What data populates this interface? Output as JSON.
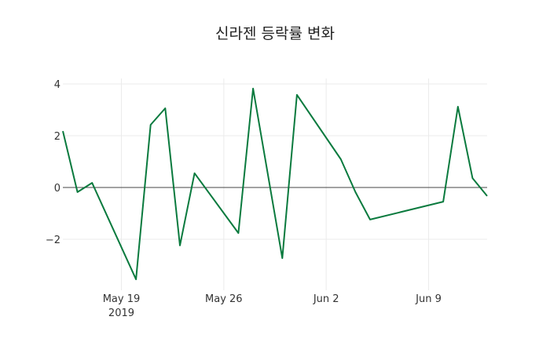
{
  "chart_data": {
    "type": "line",
    "title": "신라젠 등락률 변화",
    "xlabel": "",
    "ylabel": "",
    "x": [
      "2019-05-15",
      "2019-05-16",
      "2019-05-17",
      "2019-05-20",
      "2019-05-21",
      "2019-05-22",
      "2019-05-23",
      "2019-05-24",
      "2019-05-27",
      "2019-05-28",
      "2019-05-30",
      "2019-05-31",
      "2019-06-03",
      "2019-06-04",
      "2019-06-05",
      "2019-06-10",
      "2019-06-11",
      "2019-06-12",
      "2019-06-13"
    ],
    "series": [
      {
        "name": "등락률",
        "color": "#0a7a3e",
        "values": [
          2.18,
          -0.18,
          0.18,
          -3.55,
          2.42,
          3.06,
          -2.24,
          0.55,
          -1.76,
          3.82,
          -2.73,
          3.58,
          1.09,
          -0.18,
          -1.24,
          -0.55,
          3.12,
          0.36,
          -0.33
        ]
      }
    ],
    "x_ticks": [
      {
        "date": "2019-05-19",
        "label": "May 19",
        "sublabel": "2019"
      },
      {
        "date": "2019-05-26",
        "label": "May 26",
        "sublabel": ""
      },
      {
        "date": "2019-06-02",
        "label": "Jun 2",
        "sublabel": ""
      },
      {
        "date": "2019-06-09",
        "label": "Jun 9",
        "sublabel": ""
      }
    ],
    "y_ticks": [
      4,
      2,
      0,
      -2
    ],
    "y_tick_labels": [
      "4",
      "2",
      "0",
      "−2"
    ],
    "ylim": [
      -3.9,
      4.2
    ],
    "xlim": [
      "2019-05-15",
      "2019-06-13"
    ],
    "grid": true,
    "legend": "none"
  }
}
